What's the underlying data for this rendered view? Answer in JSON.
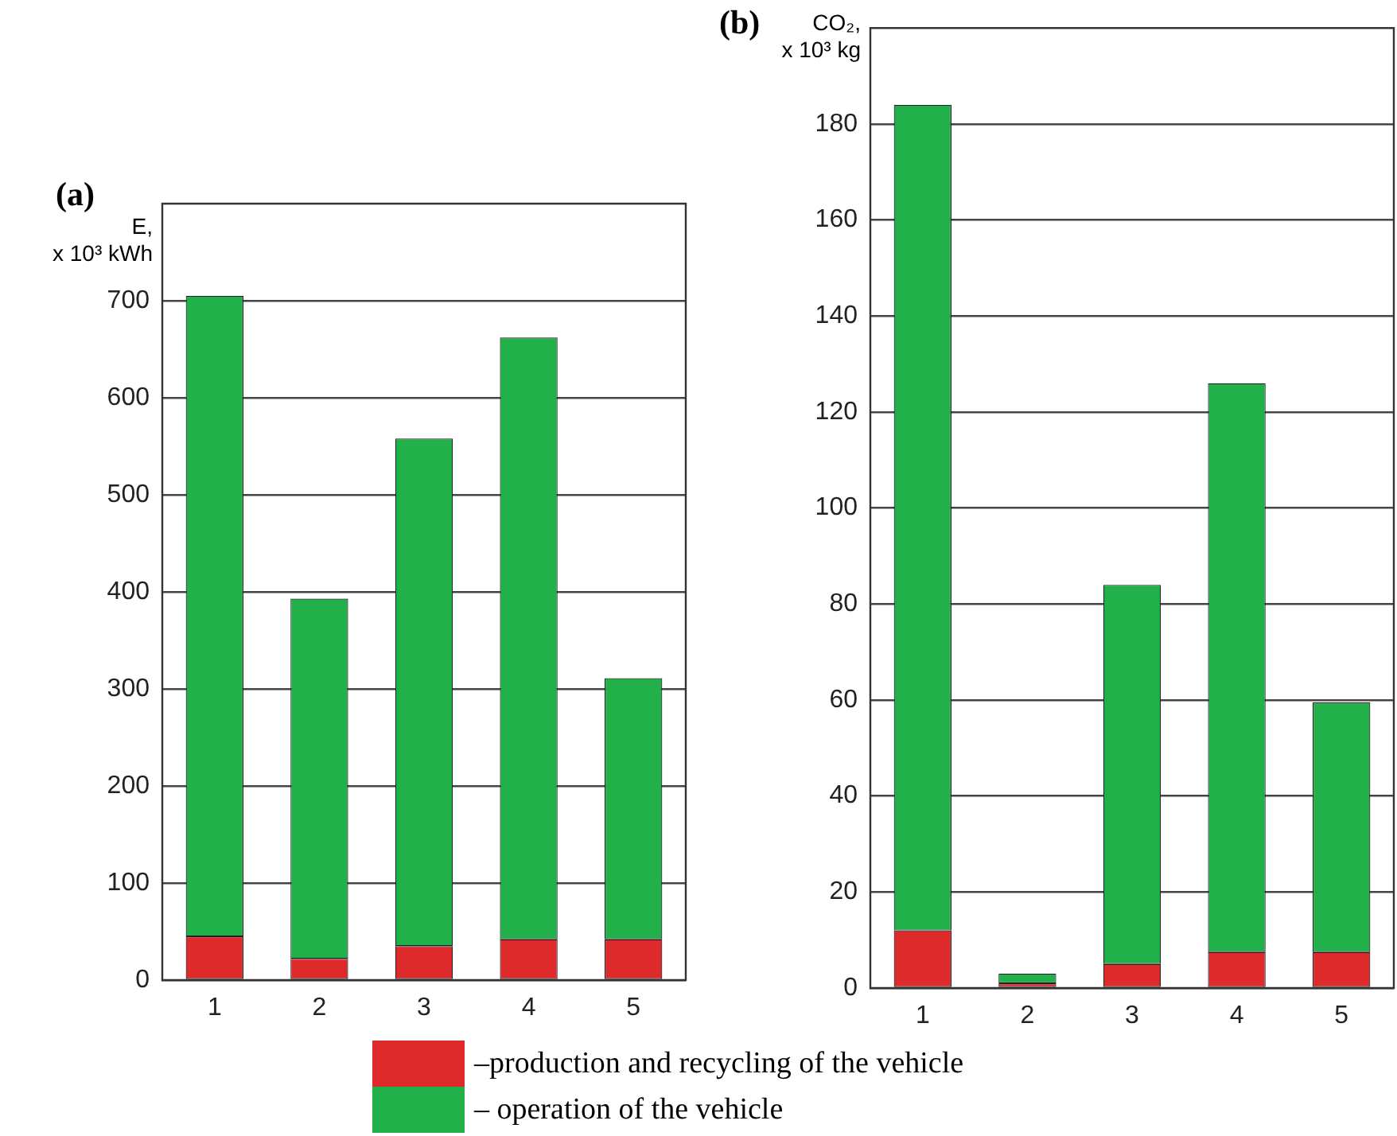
{
  "chart_data": [
    {
      "type": "bar",
      "title": "(a)",
      "ylabel": "E, x 10³ kWh",
      "categories": [
        "1",
        "2",
        "3",
        "4",
        "5"
      ],
      "stacked": true,
      "ylim": [
        0,
        800
      ],
      "yticks": [
        0,
        100,
        200,
        300,
        400,
        500,
        600,
        700
      ],
      "grid": "y",
      "legend": "bottom",
      "series": [
        {
          "name": "–production and recycling of the vehicle",
          "color": "#de2a2a",
          "values": [
            45,
            22,
            35,
            42,
            42
          ]
        },
        {
          "name": "– operation of the vehicle",
          "color": "#22b04b",
          "values": [
            660,
            371,
            523,
            620,
            269
          ]
        }
      ]
    },
    {
      "type": "bar",
      "title": "(b)",
      "ylabel": "CO₂, x 10³ kg",
      "categories": [
        "1",
        "2",
        "3",
        "4",
        "5"
      ],
      "stacked": true,
      "ylim": [
        0,
        200
      ],
      "yticks": [
        0,
        20,
        40,
        60,
        80,
        100,
        120,
        140,
        160,
        180
      ],
      "grid": "y",
      "series": [
        {
          "color": "#de2a2a",
          "values": [
            12,
            1,
            5,
            7.5,
            7.5
          ]
        },
        {
          "color": "#22b04b",
          "values": [
            172,
            2,
            79,
            118.5,
            52
          ]
        }
      ]
    }
  ]
}
